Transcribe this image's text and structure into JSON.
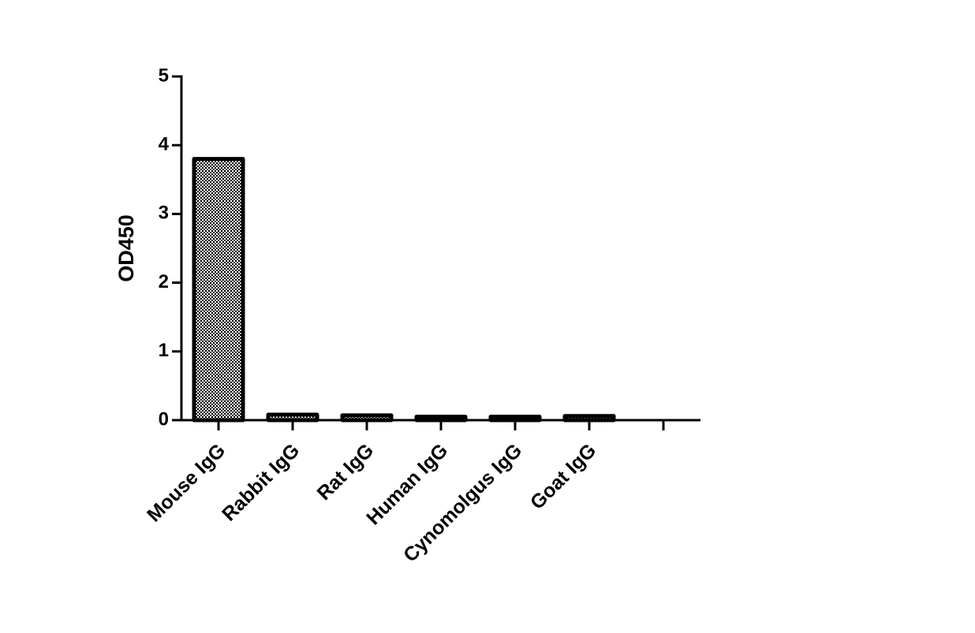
{
  "chart_data": {
    "type": "bar",
    "y_label": "OD450",
    "categories": [
      "Mouse IgG",
      "Rabbit IgG",
      "Rat IgG",
      "Human IgG",
      "Cynomolgus IgG",
      "Goat IgG",
      null
    ],
    "values": [
      3.8,
      0.08,
      0.07,
      0.05,
      0.05,
      0.06,
      null
    ],
    "ylim": [
      0,
      5
    ],
    "yticks": [
      0,
      1,
      2,
      3,
      4,
      5
    ],
    "grid": false
  }
}
